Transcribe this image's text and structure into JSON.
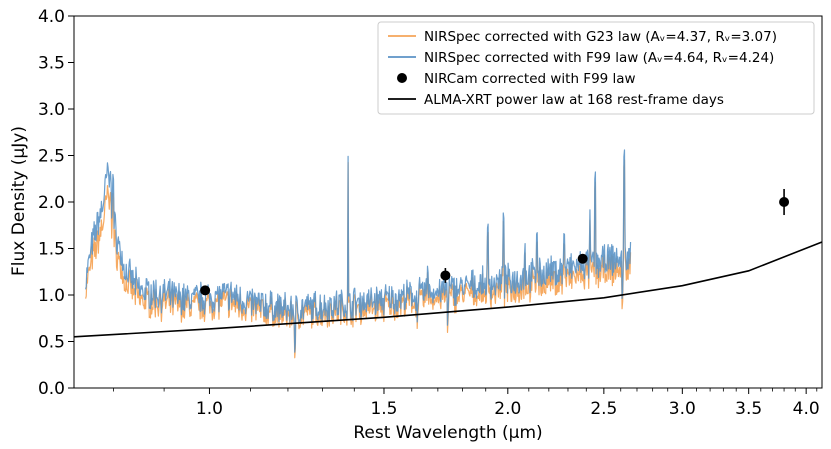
{
  "chart_data": {
    "type": "line",
    "xlabel": "Rest Wavelength (µm)",
    "ylabel": "Flux Density (µJy)",
    "xscale": "log",
    "xlim": [
      0.73,
      4.15
    ],
    "ylim": [
      0.0,
      4.0
    ],
    "xticks": [
      1.0,
      1.5,
      2.0,
      2.5,
      3.0,
      3.5,
      4.0
    ],
    "xtick_labels": [
      "1.0",
      "1.5",
      "2.0",
      "2.5",
      "3.0",
      "3.5",
      "4.0"
    ],
    "yticks": [
      0.0,
      0.5,
      1.0,
      1.5,
      2.0,
      2.5,
      3.0,
      3.5,
      4.0
    ],
    "ytick_labels": [
      "0.0",
      "0.5",
      "1.0",
      "1.5",
      "2.0",
      "2.5",
      "3.0",
      "3.5",
      "4.0"
    ],
    "grid": false,
    "legend_position": "top-right",
    "legend": [
      {
        "label": "NIRSpec corrected with G23 law (Aᵥ=4.37, Rᵥ=3.07)",
        "color": "#f5a55a",
        "kind": "line"
      },
      {
        "label": "NIRSpec corrected with F99 law (Aᵥ=4.64, Rᵥ=4.24)",
        "color": "#5b93c6",
        "kind": "line"
      },
      {
        "label": "NIRCam corrected with F99 law",
        "color": "#000000",
        "kind": "marker"
      },
      {
        "label": "ALMA-XRT power law at 168 rest-frame days",
        "color": "#000000",
        "kind": "line"
      }
    ],
    "series": [
      {
        "name": "NIRSpec corrected with G23 law (Aᵥ=4.37, Rᵥ=3.07)",
        "color": "#f5a55a",
        "x": [
          0.75,
          0.76,
          0.77,
          0.78,
          0.79,
          0.8,
          0.82,
          0.85,
          0.88,
          0.92,
          0.96,
          1.0,
          1.05,
          1.1,
          1.15,
          1.2,
          1.25,
          1.3,
          1.35,
          1.4,
          1.45,
          1.5,
          1.55,
          1.6,
          1.65,
          1.7,
          1.75,
          1.8,
          1.85,
          1.9,
          1.95,
          2.0,
          2.05,
          2.1,
          2.15,
          2.2,
          2.25,
          2.3,
          2.35,
          2.4,
          2.45,
          2.5,
          2.55,
          2.6,
          2.66
        ],
        "y": [
          1.05,
          1.35,
          1.55,
          1.75,
          2.1,
          1.6,
          1.15,
          0.95,
          0.92,
          0.9,
          0.88,
          0.9,
          0.92,
          0.85,
          0.82,
          0.78,
          0.8,
          0.82,
          0.84,
          0.85,
          0.86,
          0.88,
          0.9,
          0.92,
          0.95,
          0.97,
          0.98,
          1.0,
          1.02,
          1.03,
          1.04,
          1.06,
          1.08,
          1.1,
          1.12,
          1.14,
          1.15,
          1.17,
          1.2,
          1.22,
          1.24,
          1.25,
          1.27,
          1.28,
          1.3
        ]
      },
      {
        "name": "NIRSpec corrected with F99 law (Aᵥ=4.64, Rᵥ=4.24)",
        "color": "#5b93c6",
        "x": [
          0.75,
          0.76,
          0.77,
          0.78,
          0.79,
          0.8,
          0.82,
          0.85,
          0.88,
          0.92,
          0.96,
          1.0,
          1.05,
          1.1,
          1.15,
          1.2,
          1.25,
          1.3,
          1.35,
          1.4,
          1.45,
          1.5,
          1.55,
          1.6,
          1.65,
          1.7,
          1.75,
          1.8,
          1.85,
          1.9,
          1.95,
          2.0,
          2.05,
          2.1,
          2.15,
          2.2,
          2.25,
          2.3,
          2.35,
          2.4,
          2.45,
          2.5,
          2.55,
          2.6,
          2.66
        ],
        "y": [
          1.15,
          1.5,
          1.75,
          1.95,
          2.35,
          1.8,
          1.28,
          1.05,
          1.02,
          0.98,
          0.96,
          0.98,
          1.0,
          0.92,
          0.88,
          0.84,
          0.86,
          0.88,
          0.9,
          0.92,
          0.93,
          0.95,
          0.97,
          0.99,
          1.02,
          1.04,
          1.06,
          1.08,
          1.1,
          1.12,
          1.13,
          1.15,
          1.18,
          1.2,
          1.22,
          1.24,
          1.26,
          1.28,
          1.31,
          1.33,
          1.35,
          1.36,
          1.38,
          1.39,
          1.41
        ]
      },
      {
        "name": "NIRCam corrected with F99 law",
        "color": "#000000",
        "type": "scatter",
        "points": [
          {
            "x": 0.99,
            "y": 1.05,
            "yerr": 0.04
          },
          {
            "x": 1.73,
            "y": 1.21,
            "yerr": 0.08
          },
          {
            "x": 2.38,
            "y": 1.39,
            "yerr": 0.04
          },
          {
            "x": 3.8,
            "y": 2.0,
            "yerr": 0.14
          }
        ]
      },
      {
        "name": "ALMA-XRT power law at 168 rest-frame days",
        "color": "#000000",
        "type": "powerlaw",
        "x": [
          0.73,
          1.0,
          1.5,
          2.0,
          2.5,
          3.0,
          3.5,
          4.15
        ],
        "y": [
          0.55,
          0.635,
          0.76,
          0.87,
          0.97,
          1.1,
          1.26,
          1.57
        ]
      }
    ]
  }
}
